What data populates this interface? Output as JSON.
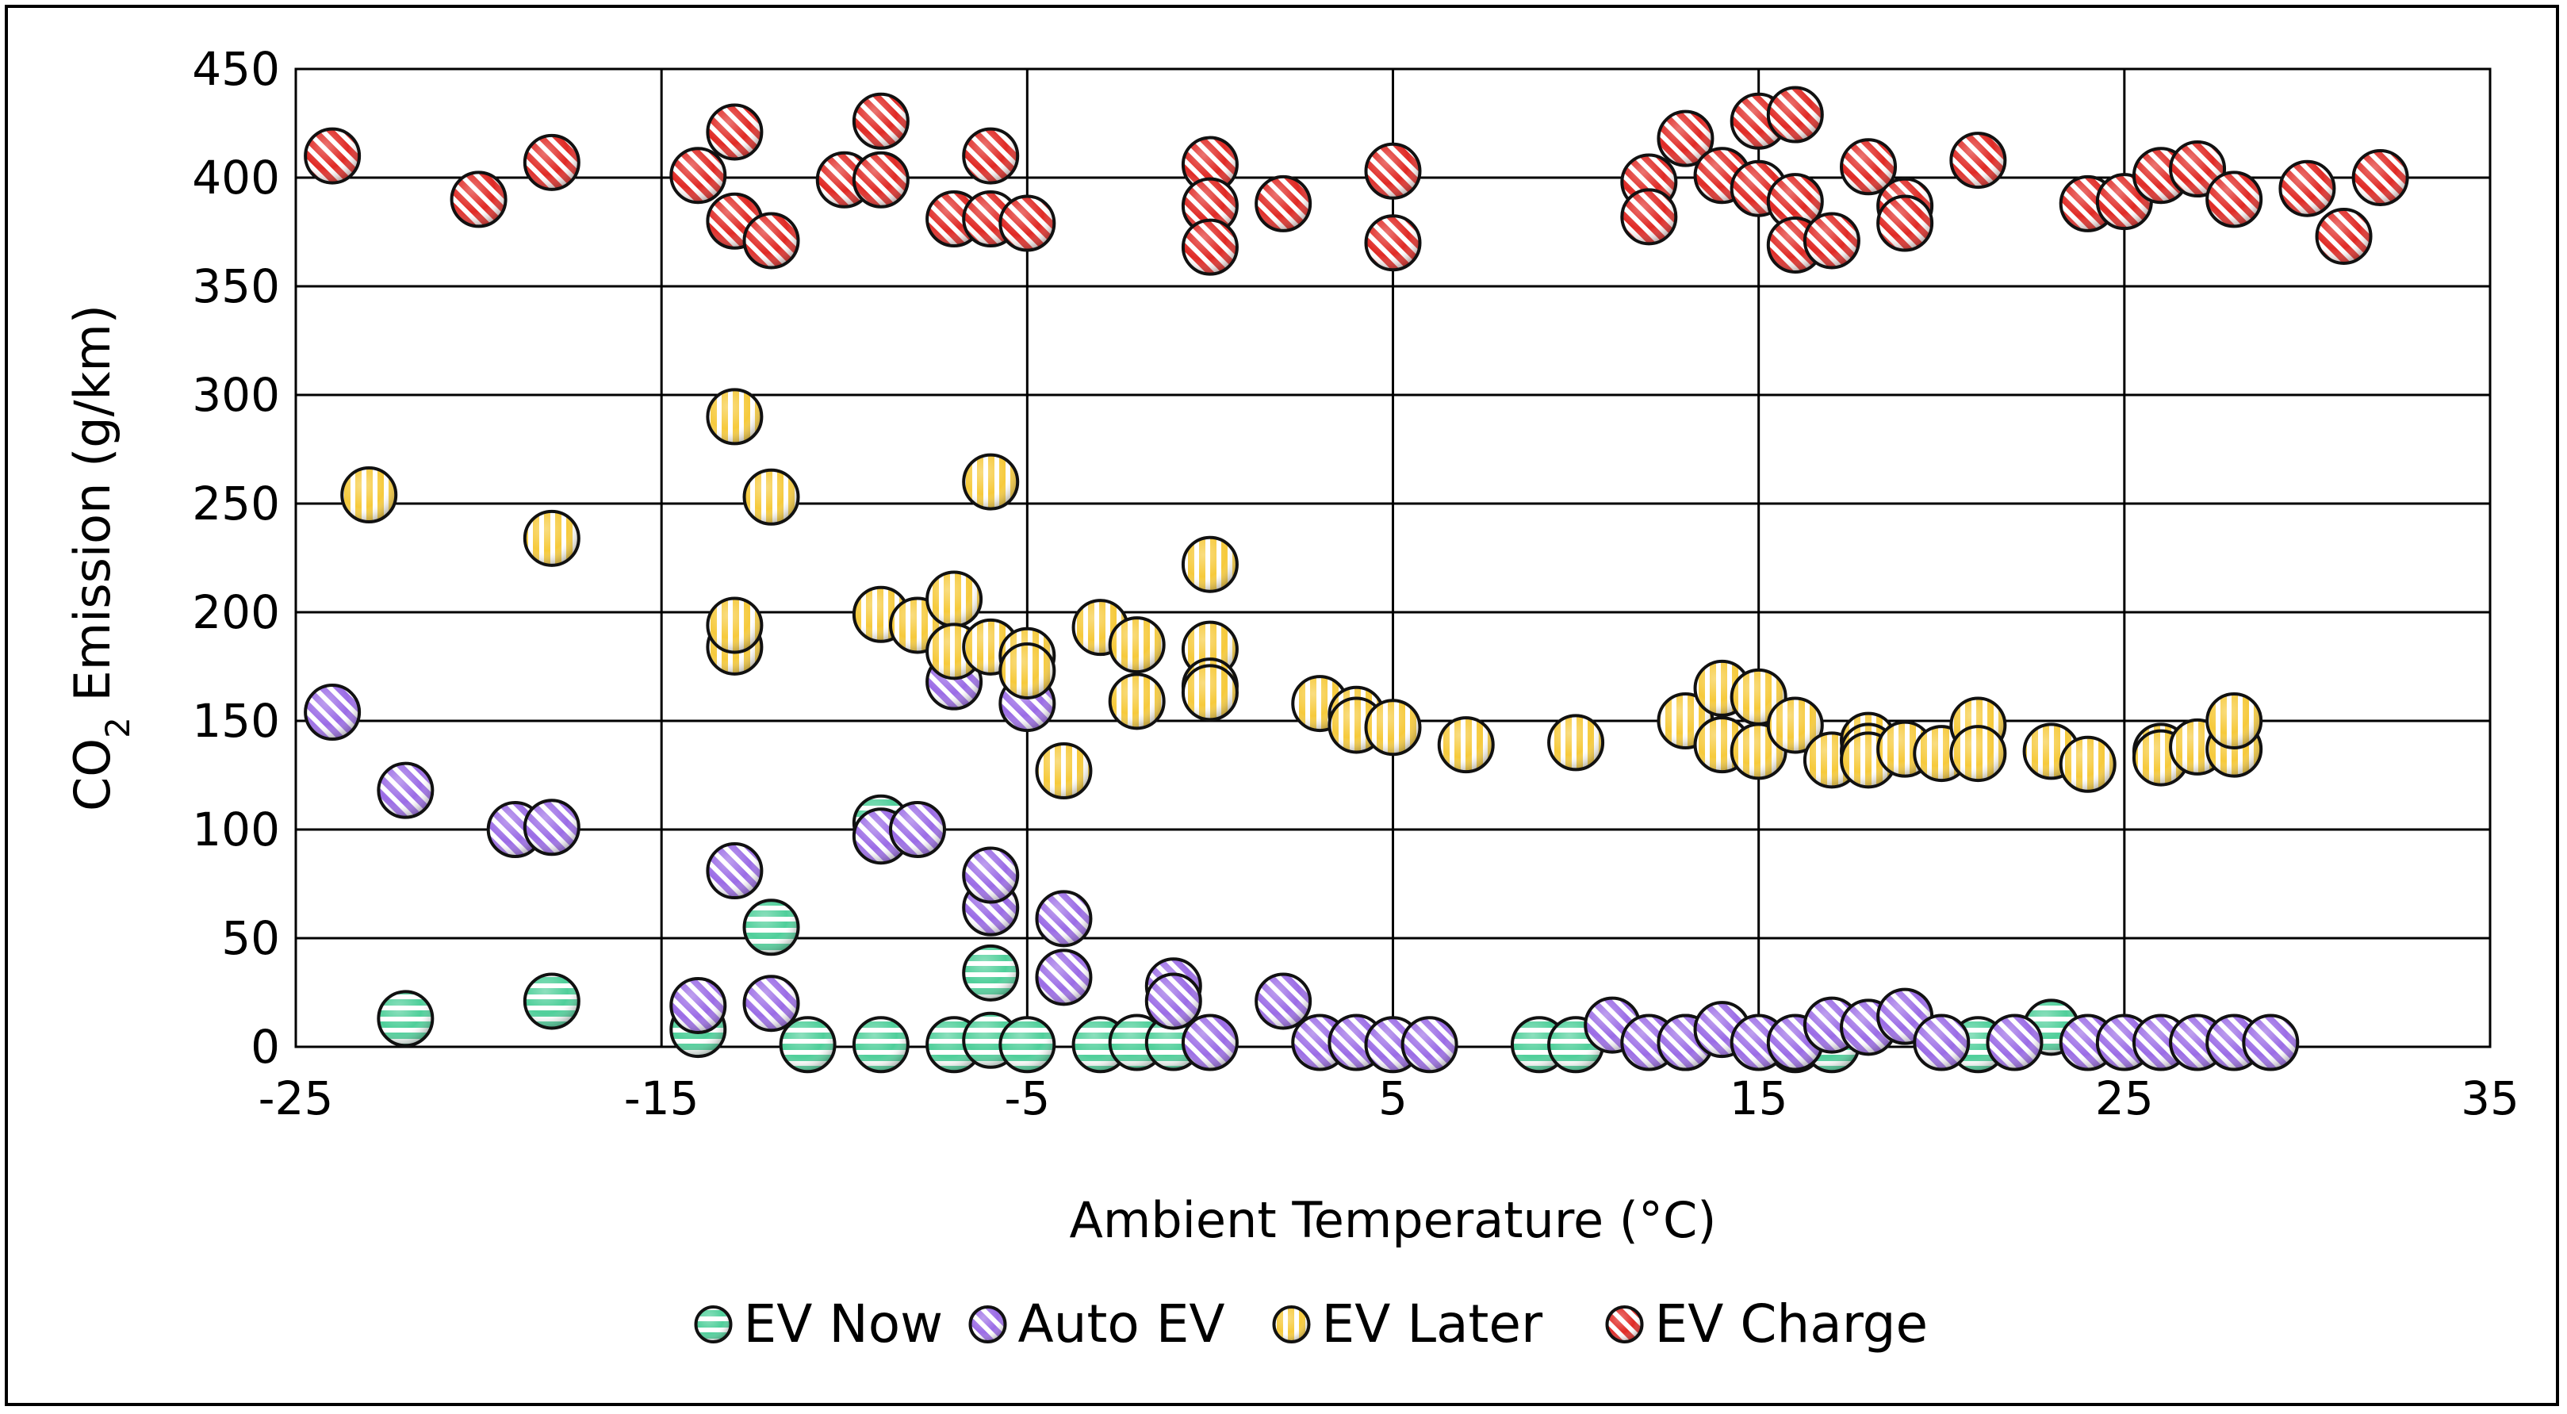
{
  "chart_data": {
    "type": "scatter",
    "title": "",
    "xlabel": "Ambient Temperature (°C)",
    "ylabel": {
      "prefix": "CO",
      "subscript": "2",
      "suffix": " Emission (g/km)"
    },
    "xlim": [
      -25,
      35
    ],
    "ylim": [
      0,
      450
    ],
    "xticks": [
      -25,
      -15,
      -5,
      5,
      15,
      25,
      35
    ],
    "xtick_labels": [
      "-25",
      "-15",
      "-5",
      "5",
      "15",
      "25",
      "35"
    ],
    "yticks": [
      0,
      50,
      100,
      150,
      200,
      250,
      300,
      350,
      400,
      450
    ],
    "ytick_labels": [
      "0",
      "50",
      "100",
      "150",
      "200",
      "250",
      "300",
      "350",
      "400",
      "450"
    ],
    "xgrid": [
      -25,
      -15,
      -5,
      5,
      15,
      25,
      35
    ],
    "grid": true,
    "legend_position": "bottom",
    "series": [
      {
        "name": "EV Now",
        "color": "#4fcf9a",
        "pattern": "horizontal",
        "points": [
          [
            -22,
            13
          ],
          [
            -18,
            21
          ],
          [
            -14,
            8
          ],
          [
            -12,
            55
          ],
          [
            -11,
            1
          ],
          [
            -9,
            103
          ],
          [
            -9,
            1
          ],
          [
            -7,
            1
          ],
          [
            -6,
            3
          ],
          [
            -6,
            34
          ],
          [
            -5,
            1
          ],
          [
            -3,
            1
          ],
          [
            -2,
            2
          ],
          [
            -1,
            2
          ],
          [
            9,
            1
          ],
          [
            10,
            1
          ],
          [
            13,
            2
          ],
          [
            16,
            1
          ],
          [
            17,
            1
          ],
          [
            21,
            1
          ],
          [
            23,
            9
          ]
        ]
      },
      {
        "name": "Auto EV",
        "color": "#9b6ce6",
        "pattern": "diagonal",
        "points": [
          [
            -24,
            154
          ],
          [
            -22,
            118
          ],
          [
            -19,
            100
          ],
          [
            -18,
            101
          ],
          [
            -14,
            19
          ],
          [
            -13,
            81
          ],
          [
            -12,
            20
          ],
          [
            -9,
            97
          ],
          [
            -8,
            100
          ],
          [
            -7,
            168
          ],
          [
            -6,
            64
          ],
          [
            -6,
            79
          ],
          [
            -5,
            158
          ],
          [
            -4,
            59
          ],
          [
            -4,
            32
          ],
          [
            -1,
            28
          ],
          [
            -1,
            21
          ],
          [
            0,
            2
          ],
          [
            2,
            21
          ],
          [
            3,
            2
          ],
          [
            4,
            2
          ],
          [
            5,
            1
          ],
          [
            6,
            1
          ],
          [
            11,
            10
          ],
          [
            12,
            2
          ],
          [
            13,
            2
          ],
          [
            14,
            8
          ],
          [
            15,
            2
          ],
          [
            16,
            2
          ],
          [
            17,
            10
          ],
          [
            18,
            9
          ],
          [
            19,
            14
          ],
          [
            20,
            2
          ],
          [
            22,
            2
          ],
          [
            24,
            2
          ],
          [
            25,
            2
          ],
          [
            26,
            2
          ],
          [
            27,
            2
          ],
          [
            28,
            2
          ],
          [
            29,
            2
          ]
        ]
      },
      {
        "name": "EV Later",
        "color": "#f6ca3c",
        "pattern": "vertical",
        "points": [
          [
            -23,
            254
          ],
          [
            -18,
            234
          ],
          [
            -13,
            290
          ],
          [
            -13,
            184
          ],
          [
            -13,
            194
          ],
          [
            -12,
            253
          ],
          [
            -9,
            199
          ],
          [
            -8,
            194
          ],
          [
            -7,
            206
          ],
          [
            -7,
            182
          ],
          [
            -6,
            260
          ],
          [
            -6,
            184
          ],
          [
            -5,
            180
          ],
          [
            -5,
            173
          ],
          [
            -4,
            127
          ],
          [
            -3,
            193
          ],
          [
            -2,
            185
          ],
          [
            -2,
            159
          ],
          [
            0,
            222
          ],
          [
            0,
            183
          ],
          [
            0,
            166
          ],
          [
            0,
            163
          ],
          [
            3,
            158
          ],
          [
            4,
            153
          ],
          [
            4,
            148
          ],
          [
            5,
            147
          ],
          [
            7,
            139
          ],
          [
            10,
            140
          ],
          [
            13,
            150
          ],
          [
            14,
            165
          ],
          [
            14,
            139
          ],
          [
            15,
            161
          ],
          [
            15,
            136
          ],
          [
            16,
            148
          ],
          [
            17,
            132
          ],
          [
            18,
            141
          ],
          [
            18,
            136
          ],
          [
            18,
            132
          ],
          [
            19,
            137
          ],
          [
            20,
            135
          ],
          [
            21,
            148
          ],
          [
            21,
            135
          ],
          [
            23,
            136
          ],
          [
            24,
            130
          ],
          [
            26,
            136
          ],
          [
            26,
            133
          ],
          [
            27,
            138
          ],
          [
            28,
            137
          ],
          [
            28,
            150
          ]
        ]
      },
      {
        "name": "EV Charge",
        "color": "#e02a25",
        "pattern": "diagonal",
        "points": [
          [
            -24,
            410
          ],
          [
            -20,
            390
          ],
          [
            -18,
            407
          ],
          [
            -14,
            401
          ],
          [
            -13,
            421
          ],
          [
            -13,
            380
          ],
          [
            -12,
            371
          ],
          [
            -10,
            399
          ],
          [
            -9,
            426
          ],
          [
            -9,
            399
          ],
          [
            -7,
            381
          ],
          [
            -6,
            410
          ],
          [
            -6,
            381
          ],
          [
            -5,
            379
          ],
          [
            0,
            406
          ],
          [
            0,
            387
          ],
          [
            0,
            368
          ],
          [
            2,
            388
          ],
          [
            5,
            403
          ],
          [
            5,
            370
          ],
          [
            12,
            398
          ],
          [
            12,
            382
          ],
          [
            13,
            418
          ],
          [
            14,
            401
          ],
          [
            15,
            426
          ],
          [
            15,
            395
          ],
          [
            16,
            429
          ],
          [
            16,
            389
          ],
          [
            16,
            369
          ],
          [
            17,
            371
          ],
          [
            18,
            405
          ],
          [
            19,
            387
          ],
          [
            19,
            379
          ],
          [
            21,
            408
          ],
          [
            24,
            388
          ],
          [
            25,
            389
          ],
          [
            26,
            401
          ],
          [
            27,
            404
          ],
          [
            28,
            390
          ],
          [
            30,
            395
          ],
          [
            31,
            373
          ],
          [
            32,
            400
          ]
        ]
      }
    ]
  }
}
